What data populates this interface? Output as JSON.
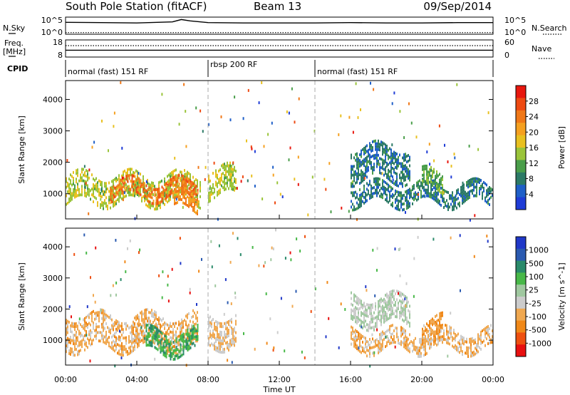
{
  "header": {
    "station": "South Pole Station (fitACF)",
    "beam": "Beam 13",
    "date": "09/Sep/2014"
  },
  "summary_panels": {
    "nsky_label": "N.Sky",
    "nsky_ticks": [
      "10^5",
      "10^0"
    ],
    "nsearch_label": "N.Search",
    "nsearch_ticks": [
      "10^5",
      "10^0"
    ],
    "freq_label_top": "Freq.",
    "freq_label_bottom": "[MHz]",
    "freq_ticks": [
      "18",
      "8"
    ],
    "nave_label": "Nave",
    "nave_ticks": [
      "60",
      "0"
    ],
    "cpid_label": "CPID",
    "modes": [
      {
        "text": "normal (fast) 151 RF",
        "start_h": 0
      },
      {
        "text": "rbsp 200 RF",
        "start_h": 8
      },
      {
        "text": "normal (fast) 151 RF",
        "start_h": 14
      }
    ]
  },
  "xaxis": {
    "label": "Time UT",
    "ticks": [
      "00:00",
      "04:00",
      "08:00",
      "12:00",
      "16:00",
      "20:00",
      "00:00"
    ]
  },
  "colors": {
    "power": [
      "#1f3cd6",
      "#1f5fc8",
      "#2c7a66",
      "#4a9e4a",
      "#9ac43a",
      "#e8c020",
      "#f5a020",
      "#f07818",
      "#ee4a12",
      "#e8170e"
    ],
    "velocity": [
      "#e81010",
      "#ee5010",
      "#f08818",
      "#f0a850",
      "#cccccc",
      "#a0c8a0",
      "#48b848",
      "#2a8a6a",
      "#2a5ab0",
      "#2038c8"
    ],
    "axis": "#000000"
  },
  "chart_data": [
    {
      "type": "line",
      "title": "N.Sky / N.Search",
      "ylabel": "N.Sky",
      "xlim": [
        0,
        24
      ],
      "ylim": [
        1,
        100000
      ],
      "yscale": "log",
      "series": [
        {
          "name": "N.Sky",
          "x": [
            0,
            2,
            4,
            6,
            6.5,
            7,
            8,
            10,
            12,
            14,
            16,
            18,
            20,
            22,
            24
          ],
          "values": [
            3000,
            2500,
            2000,
            4000,
            20000,
            8000,
            2500,
            2000,
            2000,
            2000,
            2500,
            2000,
            2000,
            2500,
            2500
          ]
        },
        {
          "name": "N.Search",
          "x": [
            0,
            4,
            8,
            12,
            16,
            20,
            24
          ],
          "values": [
            3,
            3,
            3,
            3,
            3,
            3,
            3
          ]
        }
      ]
    },
    {
      "type": "line",
      "title": "Freq. / Nave",
      "ylabel": "Freq. [MHz]",
      "xlim": [
        0,
        24
      ],
      "ylim": [
        8,
        18
      ],
      "series": [
        {
          "name": "Freq.",
          "x": [
            0,
            4,
            8,
            12,
            16,
            20,
            24
          ],
          "values": [
            12,
            12,
            12,
            12,
            12,
            12,
            12
          ]
        },
        {
          "name": "Nave",
          "x": [
            0,
            4,
            8,
            12,
            16,
            20,
            24
          ],
          "values": [
            40,
            40,
            40,
            40,
            40,
            40,
            40
          ]
        }
      ]
    },
    {
      "type": "heatmap",
      "quantity": "Power",
      "ylabel": "Slant Range [km]",
      "xlabel": "Time UT",
      "xlim": [
        0,
        24
      ],
      "ylim": [
        200,
        4600
      ],
      "yticks": [
        1000,
        2000,
        3000,
        4000
      ],
      "colorbar_label": "Power [dB]",
      "colorbar_ticks": [
        "28",
        "24",
        "20",
        "16",
        "12",
        "8",
        "4"
      ],
      "scale": [
        0,
        30
      ],
      "regions": [
        {
          "t0": 0.0,
          "t1": 7.6,
          "r_low": 700,
          "r_high": 1600,
          "value": 14
        },
        {
          "t0": 2.5,
          "t1": 7.4,
          "r_low": 900,
          "r_high": 1400,
          "value": 24
        },
        {
          "t0": 6.0,
          "t1": 7.4,
          "r_low": 500,
          "r_high": 1000,
          "value": 22
        },
        {
          "t0": 8.0,
          "t1": 9.6,
          "r_low": 900,
          "r_high": 1800,
          "value": 14
        },
        {
          "t0": 16.0,
          "t1": 19.3,
          "r_low": 1500,
          "r_high": 2500,
          "value": 6
        },
        {
          "t0": 16.0,
          "t1": 24.0,
          "r_low": 700,
          "r_high": 1300,
          "value": 6
        },
        {
          "t0": 20.0,
          "t1": 21.2,
          "r_low": 1100,
          "r_high": 1700,
          "value": 11
        }
      ]
    },
    {
      "type": "heatmap",
      "quantity": "Velocity",
      "ylabel": "Slant Range [km]",
      "xlabel": "Time UT",
      "xlim": [
        0,
        24
      ],
      "ylim": [
        200,
        4600
      ],
      "yticks": [
        1000,
        2000,
        3000,
        4000
      ],
      "colorbar_label": "Velocity [m s^-1]",
      "colorbar_ticks": [
        "1000",
        "500",
        "100",
        "25",
        "-25",
        "-100",
        "-500",
        "-1000"
      ],
      "scale": [
        -1000,
        1000
      ],
      "regions": [
        {
          "t0": 0.0,
          "t1": 7.4,
          "r_low": 700,
          "r_high": 1800,
          "value": -300
        },
        {
          "t0": 4.5,
          "t1": 7.4,
          "r_low": 600,
          "r_high": 1300,
          "value": 400
        },
        {
          "t0": 8.0,
          "t1": 9.6,
          "r_low": 800,
          "r_high": 1800,
          "value": -200
        },
        {
          "t0": 16.0,
          "t1": 19.3,
          "r_low": 1500,
          "r_high": 2400,
          "value": 0
        },
        {
          "t0": 16.0,
          "t1": 24.0,
          "r_low": 700,
          "r_high": 1300,
          "value": -300
        },
        {
          "t0": 20.0,
          "t1": 21.2,
          "r_low": 1100,
          "r_high": 1700,
          "value": -400
        }
      ]
    }
  ]
}
